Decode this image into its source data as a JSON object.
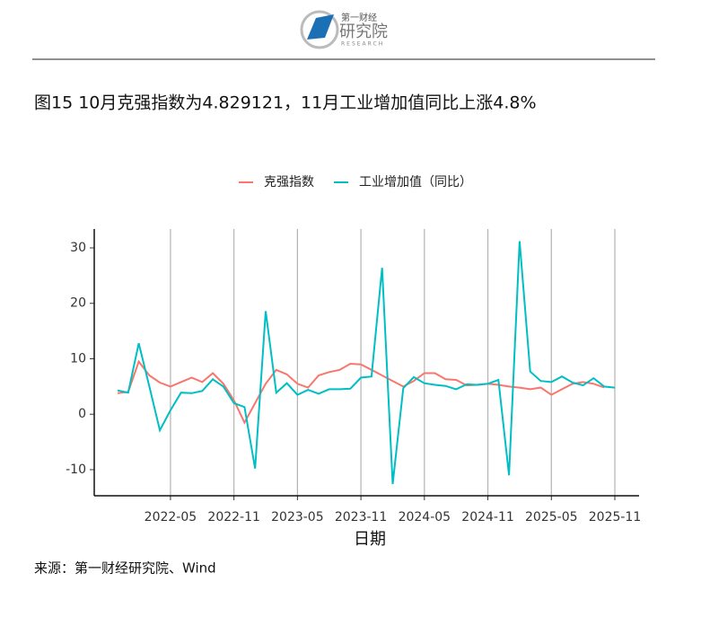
{
  "header": {
    "logo_name": "第一财经",
    "logo_sub": "研究院",
    "logo_en": "RESEARCH"
  },
  "chart_data": {
    "type": "line",
    "title": "图15 10月克强指数为4.829121，11月工业增加值同比上涨4.8%",
    "x_label": "日期",
    "source": "来源：第一财经研究院、Wind",
    "x": [
      "2021-12",
      "2022-01",
      "2022-02",
      "2022-03",
      "2022-04",
      "2022-05",
      "2022-06",
      "2022-07",
      "2022-08",
      "2022-09",
      "2022-10",
      "2022-11",
      "2022-12",
      "2023-01",
      "2023-02",
      "2023-03",
      "2023-04",
      "2023-05",
      "2023-06",
      "2023-07",
      "2023-08",
      "2023-09",
      "2023-10",
      "2023-11",
      "2023-12",
      "2024-01",
      "2024-02",
      "2024-03",
      "2024-04",
      "2024-05",
      "2024-06",
      "2024-07",
      "2024-08",
      "2024-09",
      "2024-10",
      "2024-11",
      "2024-12",
      "2025-01",
      "2025-02",
      "2025-03",
      "2025-04",
      "2025-05",
      "2025-06",
      "2025-07",
      "2025-08",
      "2025-09",
      "2025-10",
      "2025-11"
    ],
    "series": [
      {
        "name": "克强指数",
        "color": "#F8766D",
        "values": [
          3.8,
          4,
          9.5,
          7,
          5.7,
          5,
          5.8,
          6.6,
          5.8,
          7.4,
          5.5,
          2.5,
          -1.5,
          2,
          5.5,
          8,
          7.2,
          5.5,
          4.8,
          7,
          7.6,
          8,
          9.1,
          9,
          8,
          7,
          6,
          5,
          6,
          7.4,
          7.4,
          6.3,
          6.2,
          5.2,
          5.3,
          5.5,
          5.3,
          5,
          4.8,
          4.5,
          4.8,
          3.5,
          4.5,
          5.5,
          5.8,
          5.5,
          4.829121,
          null
        ]
      },
      {
        "name": "工业增加值（同比）",
        "color": "#00BFC4",
        "values": [
          4.3,
          3.9,
          12.8,
          5,
          -2.9,
          0.7,
          3.9,
          3.8,
          4.2,
          6.3,
          5,
          2,
          1.3,
          -9.8,
          18.6,
          3.9,
          5.6,
          3.5,
          4.4,
          3.7,
          4.5,
          4.5,
          4.6,
          6.6,
          6.8,
          26.4,
          -12.6,
          4.7,
          6.7,
          5.6,
          5.3,
          5.1,
          4.5,
          5.4,
          5.3,
          5.5,
          6.2,
          -11,
          31.2,
          7.7,
          6,
          5.8,
          6.8,
          5.7,
          5.2,
          6.5,
          5,
          4.8
        ]
      }
    ],
    "xticks": [
      "2022-05",
      "2022-11",
      "2023-05",
      "2023-11",
      "2024-05",
      "2024-11",
      "2025-05",
      "2025-11"
    ],
    "ylim": [
      -14.7,
      33.4
    ],
    "yticks": [
      -10,
      0,
      10,
      20,
      30
    ],
    "grid": true
  }
}
